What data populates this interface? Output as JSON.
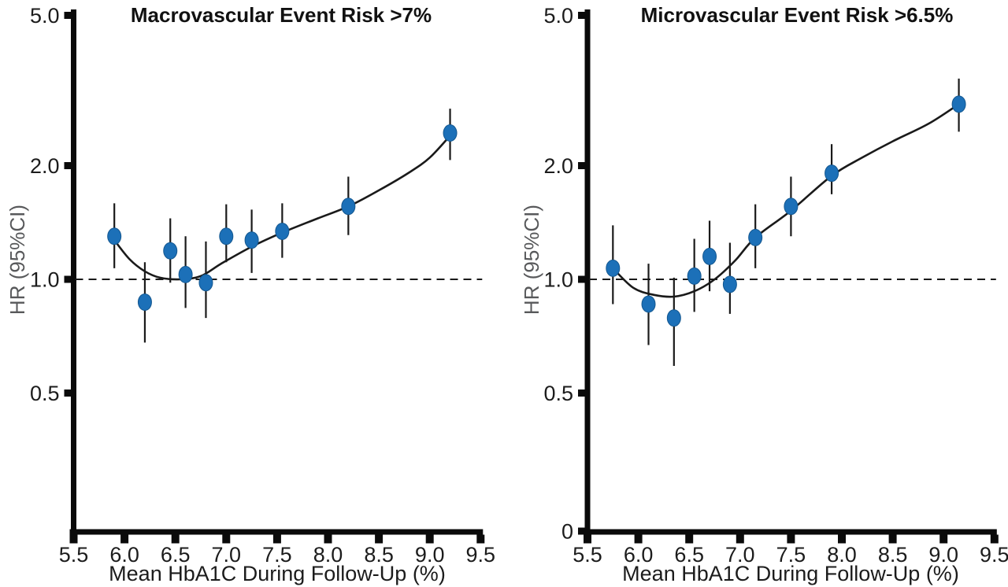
{
  "figure": {
    "background": "#ffffff",
    "point_color": "#1c70b8",
    "point_edge_color": "#14578f",
    "axis_color": "#0a0a0a",
    "curve_color": "#1a1a1a",
    "error_bar_color": "#1a1a1a",
    "tick_label_color": "#1c1c1c",
    "y_axis_title_color": "#58595b"
  },
  "chart_data": [
    {
      "type": "scatter",
      "panel": "left",
      "title": "Macrovascular Event Risk >7%",
      "xlabel": "Mean HbA1C During Follow-Up (%)",
      "ylabel": "HR (95%CI)",
      "y_scale": "log",
      "xlim": [
        5.5,
        9.5
      ],
      "x_ticks": [
        5.5,
        6.0,
        6.5,
        7.0,
        7.5,
        8.0,
        8.5,
        9.0,
        9.5
      ],
      "x_tick_labels": [
        "5.5",
        "6.0",
        "6.5",
        "7.0",
        "7.5",
        "8.0",
        "8.5",
        "9.0",
        "9.5"
      ],
      "y_ticks": [
        {
          "label": "5.0",
          "value": 5.0
        },
        {
          "label": "2.0",
          "value": 2.0
        },
        {
          "label": "1.0",
          "value": 1.0
        },
        {
          "label": "0.5",
          "value": 0.5
        }
      ],
      "reference_line_hr": 1.0,
      "points": [
        {
          "x": 5.9,
          "hr": 1.3,
          "ci_low": 1.07,
          "ci_high": 1.59
        },
        {
          "x": 6.2,
          "hr": 0.87,
          "ci_low": 0.68,
          "ci_high": 1.11
        },
        {
          "x": 6.45,
          "hr": 1.19,
          "ci_low": 0.98,
          "ci_high": 1.45
        },
        {
          "x": 6.6,
          "hr": 1.03,
          "ci_low": 0.84,
          "ci_high": 1.3
        },
        {
          "x": 6.8,
          "hr": 0.98,
          "ci_low": 0.79,
          "ci_high": 1.26
        },
        {
          "x": 7.0,
          "hr": 1.3,
          "ci_low": 1.11,
          "ci_high": 1.58
        },
        {
          "x": 7.25,
          "hr": 1.27,
          "ci_low": 1.04,
          "ci_high": 1.53
        },
        {
          "x": 7.55,
          "hr": 1.34,
          "ci_low": 1.14,
          "ci_high": 1.59
        },
        {
          "x": 8.2,
          "hr": 1.56,
          "ci_low": 1.31,
          "ci_high": 1.87
        },
        {
          "x": 9.2,
          "hr": 2.44,
          "ci_low": 2.07,
          "ci_high": 2.83
        }
      ],
      "spline_curve": [
        [
          5.9,
          1.27
        ],
        [
          6.05,
          1.13
        ],
        [
          6.2,
          1.05
        ],
        [
          6.35,
          1.01
        ],
        [
          6.55,
          1.0
        ],
        [
          6.75,
          1.02
        ],
        [
          6.95,
          1.1
        ],
        [
          7.25,
          1.22
        ],
        [
          7.55,
          1.33
        ],
        [
          7.9,
          1.45
        ],
        [
          8.2,
          1.56
        ],
        [
          8.5,
          1.72
        ],
        [
          8.8,
          1.92
        ],
        [
          9.0,
          2.1
        ],
        [
          9.2,
          2.4
        ]
      ]
    },
    {
      "type": "scatter",
      "panel": "right",
      "title": "Microvascular Event Risk >6.5%",
      "xlabel": "Mean HbA1C During Follow-Up (%)",
      "ylabel": "HR (95%CI)",
      "y_scale": "log",
      "xlim": [
        5.5,
        9.5
      ],
      "x_ticks": [
        5.5,
        6.0,
        6.5,
        7.0,
        7.5,
        8.0,
        8.5,
        9.0,
        9.5
      ],
      "x_tick_labels": [
        "5.5",
        "6.0",
        "6.5",
        "7.0",
        "7.5",
        "8.0",
        "8.5",
        "9.0",
        "9.5"
      ],
      "y_ticks": [
        {
          "label": "5.0",
          "value": 5.0
        },
        {
          "label": "2.0",
          "value": 2.0
        },
        {
          "label": "1.0",
          "value": 1.0
        },
        {
          "label": "0.5",
          "value": 0.5
        },
        {
          "label": "0",
          "value": null,
          "axis_origin": true
        }
      ],
      "reference_line_hr": 1.0,
      "points": [
        {
          "x": 5.75,
          "hr": 1.07,
          "ci_low": 0.86,
          "ci_high": 1.39
        },
        {
          "x": 6.1,
          "hr": 0.86,
          "ci_low": 0.67,
          "ci_high": 1.1
        },
        {
          "x": 6.35,
          "hr": 0.79,
          "ci_low": 0.59,
          "ci_high": 1.01
        },
        {
          "x": 6.55,
          "hr": 1.02,
          "ci_low": 0.82,
          "ci_high": 1.28
        },
        {
          "x": 6.7,
          "hr": 1.15,
          "ci_low": 0.93,
          "ci_high": 1.43
        },
        {
          "x": 6.9,
          "hr": 0.97,
          "ci_low": 0.81,
          "ci_high": 1.25
        },
        {
          "x": 7.15,
          "hr": 1.29,
          "ci_low": 1.07,
          "ci_high": 1.58
        },
        {
          "x": 7.5,
          "hr": 1.56,
          "ci_low": 1.3,
          "ci_high": 1.87
        },
        {
          "x": 7.9,
          "hr": 1.91,
          "ci_low": 1.68,
          "ci_high": 2.28
        },
        {
          "x": 9.15,
          "hr": 2.91,
          "ci_low": 2.46,
          "ci_high": 3.4
        }
      ],
      "spline_curve": [
        [
          5.75,
          1.07
        ],
        [
          5.95,
          0.95
        ],
        [
          6.15,
          0.91
        ],
        [
          6.35,
          0.9
        ],
        [
          6.55,
          0.93
        ],
        [
          6.75,
          1.0
        ],
        [
          6.95,
          1.12
        ],
        [
          7.15,
          1.29
        ],
        [
          7.5,
          1.52
        ],
        [
          7.9,
          1.88
        ],
        [
          8.2,
          2.1
        ],
        [
          8.5,
          2.32
        ],
        [
          8.85,
          2.58
        ],
        [
          9.15,
          2.91
        ]
      ]
    }
  ]
}
